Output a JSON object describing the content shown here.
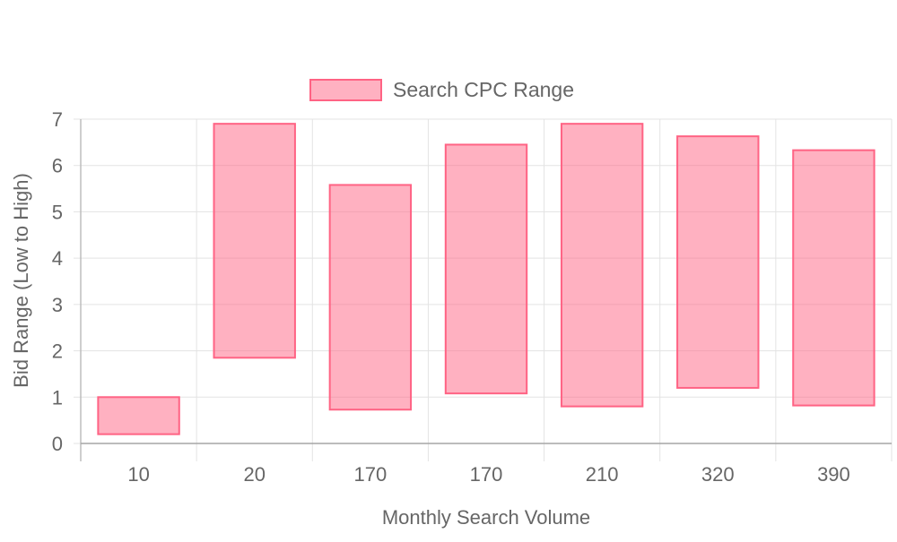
{
  "chart_data": {
    "type": "bar",
    "subtype": "floating-range",
    "title": "",
    "xlabel": "Monthly Search Volume",
    "ylabel": "Bid Range (Low to High)",
    "ylim": [
      0,
      7
    ],
    "y_ticks": [
      "0",
      "1",
      "2",
      "3",
      "4",
      "5",
      "6",
      "7"
    ],
    "categories": [
      "10",
      "20",
      "170",
      "170",
      "210",
      "320",
      "390"
    ],
    "series": [
      {
        "name": "Search CPC Range",
        "color": "#ff6384",
        "fill": "rgba(255, 99, 132, 0.5)",
        "ranges": [
          [
            0.2,
            1.0
          ],
          [
            1.85,
            6.9
          ],
          [
            0.73,
            5.58
          ],
          [
            1.08,
            6.45
          ],
          [
            0.8,
            6.9
          ],
          [
            1.2,
            6.63
          ],
          [
            0.82,
            6.33
          ]
        ]
      }
    ],
    "grid": true,
    "legend": "top"
  }
}
